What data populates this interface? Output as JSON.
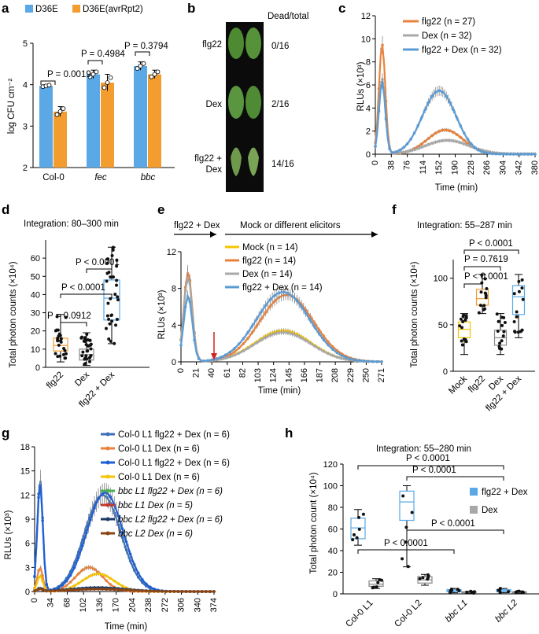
{
  "panels": {
    "a": {
      "label": "a"
    },
    "b": {
      "label": "b",
      "header": "Dead/total",
      "rows": [
        {
          "label": "flg22",
          "value": "0/16"
        },
        {
          "label": "Dex",
          "value": "2/16"
        },
        {
          "label1": "flg22 +",
          "label2": "Dex",
          "value": "14/16"
        }
      ]
    },
    "c": {
      "label": "c"
    },
    "d": {
      "label": "d"
    },
    "e": {
      "label": "e",
      "arrow_left": "flg22 + Dex",
      "arrow_right": "Mock or different elicitors"
    },
    "f": {
      "label": "f"
    },
    "g": {
      "label": "g"
    },
    "h": {
      "label": "h"
    }
  },
  "chart_data": [
    {
      "id": "a",
      "type": "bar",
      "ylabel": "log CFU cm⁻²",
      "ylim": [
        2,
        5
      ],
      "yticks": [
        "2",
        "3",
        "4",
        "5"
      ],
      "categories": [
        "Col-0",
        "fec",
        "bbc"
      ],
      "series": [
        {
          "name": "D36E",
          "color": "#5aa9e6",
          "values": [
            3.97,
            4.25,
            4.45
          ],
          "err": [
            0.03,
            0.1,
            0.1
          ]
        },
        {
          "name": "D36E(avrRpt2)",
          "color": "#f39c2f",
          "values": [
            3.35,
            4.05,
            4.25
          ],
          "err": [
            0.12,
            0.2,
            0.1
          ]
        }
      ],
      "pvalues": [
        "P = 0.0019",
        "P = 0.4984",
        "P = 0.3794"
      ]
    },
    {
      "id": "c",
      "type": "line",
      "ylabel": "RLUs (×10³)",
      "xlabel": "Time (min)",
      "ylim": [
        0,
        12
      ],
      "yticks": [
        "0",
        "2",
        "4",
        "6",
        "8",
        "10",
        "12"
      ],
      "xticks": [
        "0",
        "38",
        "76",
        "114",
        "152",
        "190",
        "228",
        "266",
        "304",
        "342",
        "380"
      ],
      "series": [
        {
          "name": "flg22 (n = 27)",
          "color": "#e8823c"
        },
        {
          "name": "Dex (n = 32)",
          "color": "#a8a8a8"
        },
        {
          "name": "flg22 + Dex (n = 32)",
          "color": "#5b9bd5"
        }
      ]
    },
    {
      "id": "d",
      "type": "box",
      "title": "Integration: 80–300 min",
      "ylabel": "Total photon counts (×10⁴)",
      "ylim": [
        0,
        70
      ],
      "yticks": [
        "0",
        "10",
        "20",
        "30",
        "40",
        "50",
        "60"
      ],
      "categories": [
        "flg22",
        "Dex",
        "flg22 + Dex"
      ],
      "pvalues": [
        "P < 0.0001",
        "P < 0.0001",
        "P = 0.0912"
      ]
    },
    {
      "id": "e",
      "type": "line",
      "ylabel": "RLUs (×10³)",
      "xlabel": "Time (min)",
      "ylim": [
        0,
        12
      ],
      "yticks": [
        "0",
        "4",
        "8",
        "12"
      ],
      "xticks": [
        "0",
        "21",
        "40",
        "61",
        "82",
        "103",
        "124",
        "145",
        "166",
        "187",
        "208",
        "229",
        "250",
        "271"
      ],
      "series": [
        {
          "name": "Mock (n = 14)",
          "color": "#f5c400"
        },
        {
          "name": "flg22 (n = 14)",
          "color": "#e8823c"
        },
        {
          "name": "Dex (n = 14)",
          "color": "#a8a8a8"
        },
        {
          "name": "flg22 + Dex (n = 14)",
          "color": "#5b9bd5"
        }
      ]
    },
    {
      "id": "f",
      "type": "box",
      "title": "Integration: 55–287 min",
      "ylabel": "Total photon counts (×10⁴)",
      "ylim": [
        0,
        120
      ],
      "yticks": [
        "0",
        "50",
        "100"
      ],
      "categories": [
        "Mock",
        "flg22",
        "Dex",
        "flg22 + Dex"
      ],
      "pvalues": [
        "P < 0.0001",
        "P = 0.7619",
        "P < 0.0001"
      ]
    },
    {
      "id": "g",
      "type": "line",
      "ylabel": "RLUs (×10³)",
      "xlabel": "Time (min)",
      "ylim": [
        0,
        18
      ],
      "yticks": [
        "0",
        "3",
        "6",
        "9",
        "12",
        "15",
        "18"
      ],
      "xticks": [
        "0",
        "34",
        "68",
        "102",
        "136",
        "170",
        "204",
        "238",
        "272",
        "306",
        "340",
        "374"
      ],
      "series": [
        {
          "name": "Col-0 L1 flg22 + Dex (n = 6)",
          "color": "#3b6fb6"
        },
        {
          "name": "Col-0 L1 Dex (n = 6)",
          "color": "#e8823c"
        },
        {
          "name": "Col-0 L1 flg22 + Dex (n = 6)",
          "color": "#1f5fd6"
        },
        {
          "name": "Col-0 L1 Dex (n = 6)",
          "color": "#f5c400"
        },
        {
          "name": "bbc L1 flg22 + Dex (n = 6)",
          "color": "#4caf50"
        },
        {
          "name": "bbc L1 Dex (n = 5)",
          "color": "#c0392b"
        },
        {
          "name": "bbc L2 flg22 + Dex (n = 6)",
          "color": "#1c3a63"
        },
        {
          "name": "bbc L2 Dex (n = 6)",
          "color": "#8b4513"
        }
      ]
    },
    {
      "id": "h",
      "type": "box",
      "title": "Integration: 55–280 min",
      "ylabel": "Total photon count (×10⁴)",
      "ylim": [
        0,
        120
      ],
      "yticks": [
        "0",
        "20",
        "40",
        "60",
        "80",
        "100",
        "120"
      ],
      "categories": [
        "Col-0 L1",
        "Col-0 L2",
        "bbc L1",
        "bbc L2"
      ],
      "legend": [
        {
          "name": "flg22 + Dex",
          "color": "#5aa9e6"
        },
        {
          "name": "Dex",
          "color": "#a8a8a8"
        }
      ],
      "pvalues": [
        "P < 0.0001",
        "P < 0.0001",
        "P < 0.0001",
        "P < 0.0001"
      ]
    }
  ]
}
